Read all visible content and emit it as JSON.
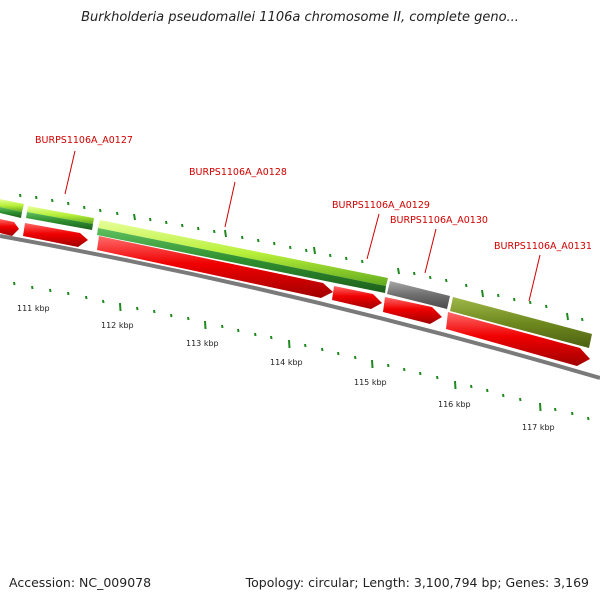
{
  "title": "Burkholderia pseudomallei 1106a chromosome II, complete geno...",
  "genes": [
    {
      "label": "BURPS1106A_A0127"
    },
    {
      "label": "BURPS1106A_A0128"
    },
    {
      "label": "BURPS1106A_A0129"
    },
    {
      "label": "BURPS1106A_A0130"
    },
    {
      "label": "BURPS1106A_A0131"
    }
  ],
  "scale_labels": [
    "111 kbp",
    "112 kbp",
    "113 kbp",
    "114 kbp",
    "115 kbp",
    "116 kbp",
    "117 kbp"
  ],
  "footer": {
    "accession": "Accession: NC_009078",
    "summary": "Topology: circular; Length: 3,100,794 bp; Genes: 3,169"
  },
  "colors": {
    "gene_label": "#d00000",
    "cds_forward": "#e00000",
    "feature_light_green": "#b8f03a",
    "feature_dark_green": "#2f8f2f",
    "feature_gray": "#6e6e6e",
    "feature_olive": "#6f8a1f",
    "backbone": "#7a7a7a",
    "tick_green": "#1e8a1e",
    "text": "#222222"
  }
}
